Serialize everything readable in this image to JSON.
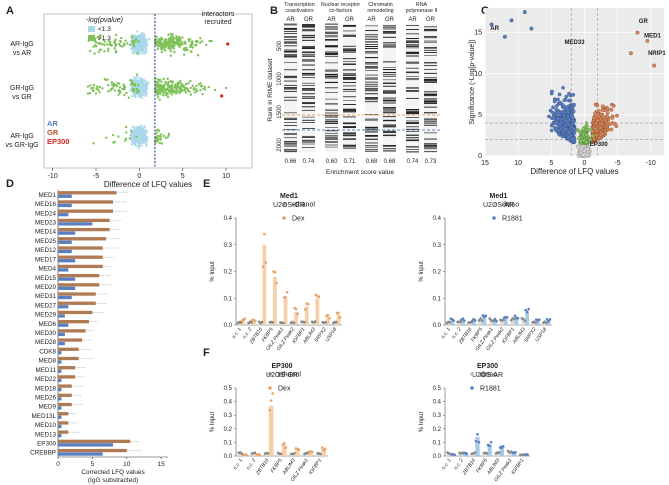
{
  "panels": {
    "A": "A",
    "B": "B",
    "C": "C",
    "D": "D",
    "E": "E",
    "F": "F"
  },
  "colors": {
    "blue": "#5a7fc0",
    "green": "#7fc25a",
    "lightblue": "#a9d8ea",
    "red": "#d7261e",
    "orange": "#e7a36b",
    "brown": "#b07a55",
    "gray": "#777777",
    "olive": "#8a9a3a"
  },
  "panel_a": {
    "legend_title": "-log(pvalue)",
    "legend_items": [
      "<1.3",
      ">1.3"
    ],
    "annotation": "interactors\nrecruited",
    "rows": [
      "AR-IgG\nvs AR",
      "GR-IgG\nvs GR",
      "AR-IgG\nvs GR-IgG"
    ],
    "labels": [
      {
        "text": "AR",
        "color": "#5a7fc0"
      },
      {
        "text": "GR",
        "color": "#b5502a"
      },
      {
        "text": "EP300",
        "color": "#d7261e"
      }
    ],
    "xlabel": "Difference of LFQ values",
    "xticks": [
      "-10",
      "-5",
      "0",
      "5",
      "10"
    ]
  },
  "panel_b": {
    "headers": [
      "Transcription\ncoactivators",
      "Nuclear receptor\nco-factors",
      "Chromatin\nremodeling",
      "RNA\npolymerase II"
    ],
    "columns": [
      "AR",
      "GR",
      "AR",
      "GR",
      "AR",
      "GR",
      "AR",
      "GR"
    ],
    "scores": [
      "0.66",
      "0.74",
      "0.60",
      "0.71",
      "0.68",
      "0.68",
      "0.74",
      "0.73"
    ],
    "ylabel": "Rank in RIME dataset",
    "yticks": [
      "500",
      "1000",
      "1500",
      "2000"
    ],
    "xlabel": "Enrichment score value"
  },
  "panel_c": {
    "ylabel": "Significance (-Log[p-value])",
    "xlabel": "Difference of LFQ values",
    "xticks": [
      "15",
      "10",
      "5",
      "0",
      "-5",
      "-10"
    ],
    "yticks": [
      "0",
      "5",
      "10",
      "15"
    ],
    "labels": [
      "AR",
      "MED33",
      "GR",
      "MED1",
      "NRIP1",
      "EP300"
    ]
  },
  "panel_d": {
    "proteins": [
      "MED1",
      "MED16",
      "MED24",
      "MED23",
      "MED14",
      "MED25",
      "MED12",
      "MED17",
      "MED4",
      "MED15",
      "MED20",
      "MED31",
      "MED27",
      "MED29",
      "MED6",
      "MED30",
      "MED28",
      "CDK8",
      "MED8",
      "MED11",
      "MED22",
      "MED18",
      "MED26",
      "MED9",
      "MED13L",
      "MED10",
      "MED13",
      "EP300",
      "CREBBP"
    ],
    "xlabel": "Corrected LFQ values\n(IgG substracted)",
    "xticks": [
      "0",
      "5",
      "10",
      "15"
    ],
    "chart_data": {
      "type": "bar",
      "series": [
        {
          "name": "AR",
          "values": [
            2.0,
            2.0,
            1.5,
            5.0,
            2.5,
            2.0,
            2.0,
            2.5,
            1.5,
            2.5,
            2.5,
            2.0,
            1.5,
            1.0,
            1.5,
            1.0,
            1.0,
            0.5,
            0.5,
            0.5,
            0.5,
            0.5,
            0.5,
            0.5,
            0.5,
            0.5,
            0.5,
            8.0,
            6.5
          ]
        },
        {
          "name": "GR",
          "values": [
            8.5,
            8.0,
            8.0,
            7.5,
            7.5,
            7.0,
            6.5,
            6.5,
            6.5,
            6.0,
            6.0,
            5.5,
            5.5,
            5.0,
            4.5,
            4.0,
            3.5,
            3.0,
            3.0,
            2.5,
            2.5,
            2.0,
            2.0,
            2.0,
            1.5,
            1.5,
            1.5,
            10.5,
            10.0
          ]
        }
      ]
    }
  },
  "panel_e1": {
    "title": "Med1",
    "subtitle": "U2OS-GR",
    "ylabel": "% Input",
    "legend": [
      "ethanol",
      "Dex"
    ],
    "ymax": 0.4,
    "yticks": [
      "0.0",
      "0.1",
      "0.2",
      "0.3",
      "0.4"
    ],
    "chart_data": {
      "type": "bar",
      "categories": [
        "n.c. 1",
        "n.c. 2",
        "ZBTB16",
        "FKBP5",
        "GILZ Peak1",
        "GILZ Peak2",
        "IGFBP1",
        "ABLIM3",
        "SRPX2",
        "USP18"
      ],
      "series": [
        {
          "name": "ethanol",
          "values": [
            0.01,
            0.01,
            0.01,
            0.01,
            0.01,
            0.01,
            0.01,
            0.01,
            0.01,
            0.01
          ]
        },
        {
          "name": "Dex",
          "values": [
            0.02,
            0.02,
            0.3,
            0.18,
            0.1,
            0.05,
            0.07,
            0.1,
            0.03,
            0.04
          ]
        }
      ]
    }
  },
  "panel_e2": {
    "title": "Med1",
    "subtitle": "U2OS-AR",
    "ylabel": "% Input",
    "legend": [
      "dmso",
      "R1881"
    ],
    "ymax": 0.4,
    "yticks": [
      "0.0",
      "0.1",
      "0.2",
      "0.3",
      "0.4"
    ],
    "chart_data": {
      "type": "bar",
      "categories": [
        "n.c. 1",
        "n.c. 2",
        "ZBTB16",
        "FKBP5",
        "GILZ Peak1",
        "GILZ Peak2",
        "IGFBP1",
        "ABLIM3",
        "SRPX2",
        "USP18"
      ],
      "series": [
        {
          "name": "dmso",
          "values": [
            0.01,
            0.01,
            0.01,
            0.02,
            0.02,
            0.02,
            0.02,
            0.02,
            0.01,
            0.01
          ]
        },
        {
          "name": "R1881",
          "values": [
            0.02,
            0.02,
            0.02,
            0.03,
            0.02,
            0.03,
            0.03,
            0.05,
            0.02,
            0.02
          ]
        }
      ]
    }
  },
  "panel_f1": {
    "title": "EP300",
    "subtitle": "U2OS-GR",
    "ylabel": "% Input",
    "legend": [
      "ethanol",
      "Dex"
    ],
    "ymax": 0.5,
    "yticks": [
      "0.0",
      "0.1",
      "0.2",
      "0.3",
      "0.4",
      "0.5"
    ],
    "chart_data": {
      "type": "bar",
      "categories": [
        "n.c. 1",
        "n.c. 2",
        "ZBTB16",
        "FKBP5",
        "ABLIM3",
        "GILZ Peak1",
        "IGFBP1"
      ],
      "series": [
        {
          "name": "ethanol",
          "values": [
            0.02,
            0.02,
            0.02,
            0.02,
            0.02,
            0.02,
            0.02
          ]
        },
        {
          "name": "Dex",
          "values": [
            0.01,
            0.01,
            0.37,
            0.08,
            0.05,
            0.04,
            0.05
          ]
        }
      ]
    }
  },
  "panel_f2": {
    "title": "EP300",
    "subtitle": "U2OS-AR",
    "ylabel": "% Input",
    "legend": [
      "dmso",
      "R1881"
    ],
    "ymax": 0.5,
    "yticks": [
      "0.0",
      "0.1",
      "0.2",
      "0.3",
      "0.4",
      "0.5"
    ],
    "chart_data": {
      "type": "bar",
      "categories": [
        "n.c. 1",
        "n.c. 2",
        "ZBTB16",
        "FKBP5",
        "ABLIM3",
        "GILZ Peak1",
        "IGFBP1"
      ],
      "series": [
        {
          "name": "dmso",
          "values": [
            0.02,
            0.02,
            0.02,
            0.02,
            0.02,
            0.03,
            0.01
          ]
        },
        {
          "name": "R1881",
          "values": [
            0.01,
            0.02,
            0.14,
            0.08,
            0.08,
            0.03,
            0.01
          ]
        }
      ]
    }
  }
}
